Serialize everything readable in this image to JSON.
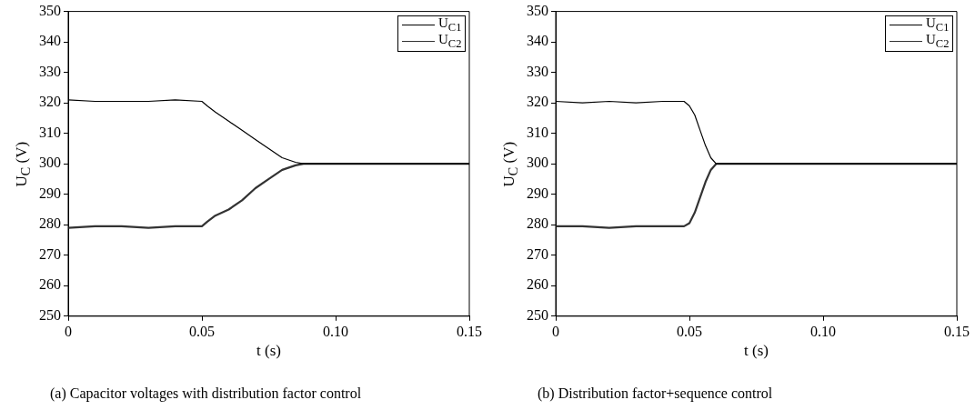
{
  "chart_data": [
    {
      "type": "line",
      "xlabel": "t (s)",
      "ylabel": "U$_{C}$ (V)",
      "annotations": [
        "(a)  Capacitor voltages with distribution factor control"
      ],
      "xlim": [
        0,
        0.15
      ],
      "xticks": [
        0,
        0.05,
        {
          "value": 0.1,
          "label": "0.10"
        },
        0.15
      ],
      "ylim": [
        250,
        350
      ],
      "yticks": [
        250,
        260,
        270,
        280,
        290,
        300,
        310,
        320,
        330,
        340,
        350
      ],
      "grid": false,
      "legend": "top right",
      "marker": "none",
      "line_style": "solid",
      "x": [
        0,
        0.01,
        0.02,
        0.03,
        0.04,
        0.05,
        0.052,
        0.055,
        0.06,
        0.065,
        0.07,
        0.075,
        0.08,
        0.085,
        0.088,
        0.1,
        0.12,
        0.15
      ],
      "series": [
        {
          "name": "U$_{C1}$",
          "color": "#000000",
          "values": [
            321,
            320.5,
            320.5,
            320.5,
            321,
            320.5,
            319,
            317,
            314,
            311,
            308,
            305,
            302,
            300.5,
            300,
            300,
            300,
            300
          ]
        },
        {
          "name": "U$_{C2}$",
          "color": "#333333",
          "values": [
            279,
            279.5,
            279.5,
            279,
            279.5,
            279.5,
            281,
            283,
            285,
            288,
            292,
            295,
            298,
            299.5,
            300,
            300,
            300,
            300
          ]
        }
      ]
    },
    {
      "type": "line",
      "xlabel": "t (s)",
      "ylabel": "U$_{C}$ (V)",
      "annotations": [
        "(b)  Distribution factor+sequence control"
      ],
      "xlim": [
        0,
        0.15
      ],
      "xticks": [
        0,
        0.05,
        {
          "value": 0.1,
          "label": "0.10"
        },
        0.15
      ],
      "ylim": [
        250,
        350
      ],
      "yticks": [
        250,
        260,
        270,
        280,
        290,
        300,
        310,
        320,
        330,
        340,
        350
      ],
      "grid": false,
      "legend": "top right",
      "marker": "none",
      "line_style": "solid",
      "x": [
        0,
        0.01,
        0.02,
        0.03,
        0.04,
        0.048,
        0.05,
        0.052,
        0.054,
        0.056,
        0.058,
        0.06,
        0.08,
        0.1,
        0.12,
        0.15
      ],
      "series": [
        {
          "name": "U$_{C1}$",
          "color": "#000000",
          "values": [
            320.5,
            320,
            320.5,
            320,
            320.5,
            320.5,
            319,
            316,
            311,
            306,
            302,
            300,
            300,
            300,
            300,
            300
          ]
        },
        {
          "name": "U$_{C2}$",
          "color": "#333333",
          "values": [
            279.5,
            279.5,
            279,
            279.5,
            279.5,
            279.5,
            280.5,
            284,
            289,
            294,
            298,
            300,
            300,
            300,
            300,
            300
          ]
        }
      ]
    }
  ]
}
